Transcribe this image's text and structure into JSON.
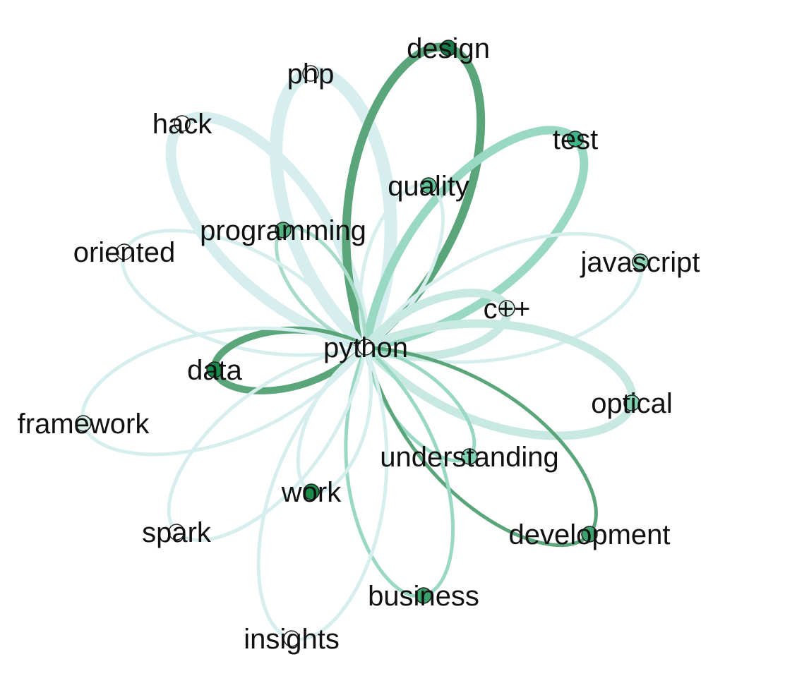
{
  "graph": {
    "center": "python",
    "nodes": [
      {
        "id": "design",
        "label": "design",
        "color": "#1a7a4a"
      },
      {
        "id": "php",
        "label": "php",
        "color": "#ffffff"
      },
      {
        "id": "hack",
        "label": "hack",
        "color": "#ffffff"
      },
      {
        "id": "test",
        "label": "test",
        "color": "#3fb58a"
      },
      {
        "id": "quality",
        "label": "quality",
        "color": "#5fbf94"
      },
      {
        "id": "programming",
        "label": "programming",
        "color": "#52b380"
      },
      {
        "id": "oriented",
        "label": "oriented",
        "color": "#ffffff"
      },
      {
        "id": "javascript",
        "label": "javascript",
        "color": "#8fd4b6"
      },
      {
        "id": "cpp",
        "label": "c++",
        "color": "#d6efe9"
      },
      {
        "id": "python",
        "label": "python",
        "color": "#ffffff"
      },
      {
        "id": "data",
        "label": "data",
        "color": "#1a8a4a"
      },
      {
        "id": "optical",
        "label": "optical",
        "color": "#7fd1b2"
      },
      {
        "id": "framework",
        "label": "framework",
        "color": "#d6efe9"
      },
      {
        "id": "understanding",
        "label": "understanding",
        "color": "#7fd1b2"
      },
      {
        "id": "work",
        "label": "work",
        "color": "#1a8a4a"
      },
      {
        "id": "development",
        "label": "development",
        "color": "#3aa36b"
      },
      {
        "id": "spark",
        "label": "spark",
        "color": "#ffffff"
      },
      {
        "id": "business",
        "label": "business",
        "color": "#3aa36b"
      },
      {
        "id": "insights",
        "label": "insights",
        "color": "#ffffff"
      }
    ],
    "edges": [
      {
        "target": "php",
        "color": "#d7eeee",
        "weight": 5
      },
      {
        "target": "hack",
        "color": "#d7eeee",
        "weight": 4
      },
      {
        "target": "design",
        "color": "#5aa57a",
        "weight": 3
      },
      {
        "target": "test",
        "color": "#99d8c2",
        "weight": 3
      },
      {
        "target": "quality",
        "color": "#d7eeee",
        "weight": 1
      },
      {
        "target": "programming",
        "color": "#a8dcc8",
        "weight": 1
      },
      {
        "target": "oriented",
        "color": "#d7eeee",
        "weight": 1
      },
      {
        "target": "javascript",
        "color": "#d7eeee",
        "weight": 1
      },
      {
        "target": "cpp",
        "color": "#c8e8e2",
        "weight": 3
      },
      {
        "target": "optical",
        "color": "#c8e8e2",
        "weight": 3
      },
      {
        "target": "data",
        "color": "#5aa57a",
        "weight": 2
      },
      {
        "target": "framework",
        "color": "#d7eeee",
        "weight": 1
      },
      {
        "target": "understanding",
        "color": "#99d8c2",
        "weight": 1
      },
      {
        "target": "development",
        "color": "#5aa57a",
        "weight": 1
      },
      {
        "target": "business",
        "color": "#99d8c2",
        "weight": 1
      },
      {
        "target": "work",
        "color": "#d7eeee",
        "weight": 1
      },
      {
        "target": "spark",
        "color": "#d7eeee",
        "weight": 1
      },
      {
        "target": "insights",
        "color": "#d7eeee",
        "weight": 1
      }
    ]
  }
}
